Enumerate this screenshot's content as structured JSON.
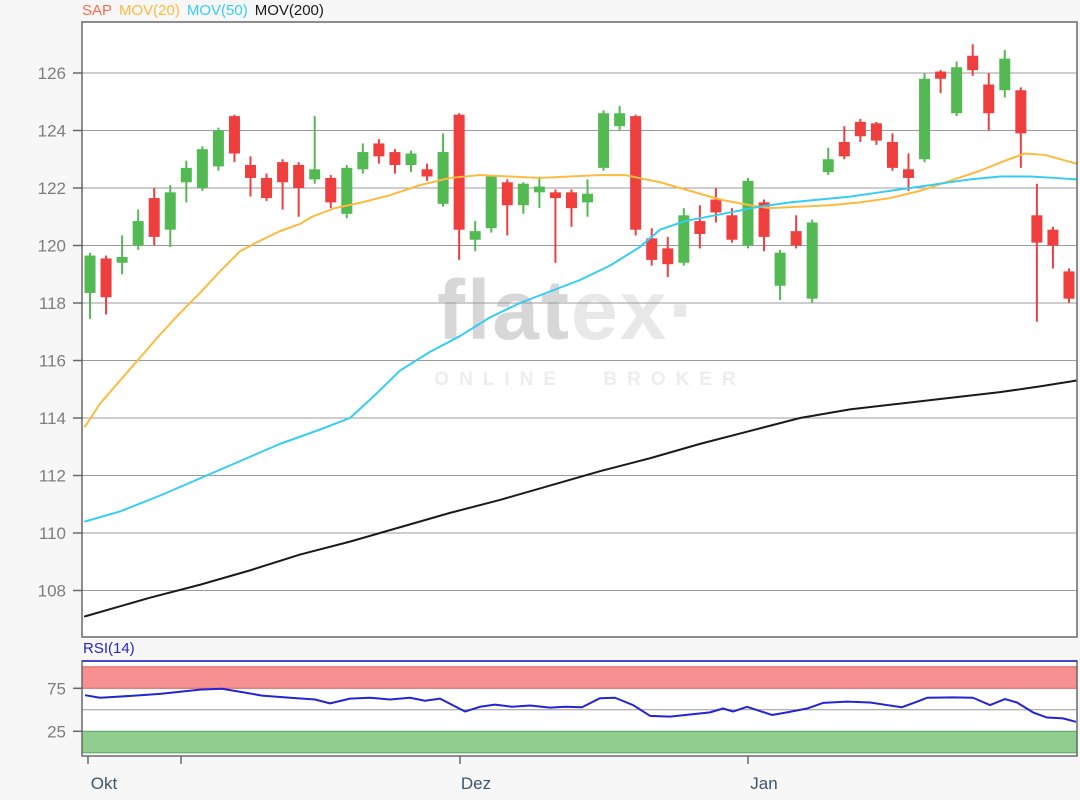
{
  "legend": {
    "items": [
      {
        "label": "SAP",
        "color": "#fa6a52"
      },
      {
        "label": "MOV(20)",
        "color": "#fcba3f"
      },
      {
        "label": "MOV(50)",
        "color": "#36cdf5"
      },
      {
        "label": "MOV(200)",
        "color": "#1a1a1a"
      }
    ]
  },
  "watermark": {
    "part1": "flat",
    "part2": "ex·",
    "subtitle": "ONLINE BROKER",
    "color_dark": "#d7d7d7",
    "color_light": "#e8e8e8",
    "color_subtitle": "#ededed"
  },
  "chart_data": {
    "type": "candlestick",
    "title": "SAP",
    "price_panel": {
      "y_ticks": [
        126,
        124,
        122,
        120,
        118,
        116,
        114,
        112,
        110,
        108
      ],
      "ylim": [
        106.4,
        127.8
      ],
      "grid": true,
      "up_color": "#53b953",
      "down_color": "#ef3e3e",
      "candles_ohlc": [
        [
          118.35,
          119.75,
          117.45,
          119.65
        ],
        [
          119.55,
          119.65,
          117.6,
          118.2
        ],
        [
          119.4,
          120.35,
          119.0,
          119.6
        ],
        [
          120.0,
          121.25,
          119.85,
          120.85
        ],
        [
          121.65,
          122.0,
          120.0,
          120.3
        ],
        [
          120.55,
          122.1,
          119.95,
          121.85
        ],
        [
          122.2,
          122.95,
          121.5,
          122.7
        ],
        [
          122.0,
          123.45,
          121.9,
          123.35
        ],
        [
          122.75,
          124.1,
          122.6,
          124.0
        ],
        [
          124.5,
          124.55,
          122.9,
          123.2
        ],
        [
          122.8,
          123.1,
          121.7,
          122.35
        ],
        [
          122.35,
          122.5,
          121.55,
          121.65
        ],
        [
          122.9,
          123.0,
          121.25,
          122.2
        ],
        [
          122.8,
          122.9,
          121.0,
          122.0
        ],
        [
          122.3,
          124.5,
          122.15,
          122.65
        ],
        [
          122.35,
          122.45,
          121.3,
          121.5
        ],
        [
          121.1,
          122.8,
          120.95,
          122.7
        ],
        [
          122.65,
          123.55,
          122.5,
          123.25
        ],
        [
          123.55,
          123.7,
          122.85,
          123.1
        ],
        [
          123.25,
          123.35,
          122.5,
          122.8
        ],
        [
          122.8,
          123.3,
          122.55,
          123.2
        ],
        [
          122.65,
          122.85,
          122.25,
          122.4
        ],
        [
          121.45,
          123.9,
          121.35,
          123.25
        ],
        [
          124.55,
          124.6,
          119.5,
          120.55
        ],
        [
          120.2,
          120.85,
          119.8,
          120.5
        ],
        [
          120.6,
          122.45,
          120.45,
          122.4
        ],
        [
          122.2,
          122.3,
          120.35,
          121.4
        ],
        [
          121.4,
          122.2,
          121.1,
          122.15
        ],
        [
          121.85,
          122.4,
          121.3,
          122.05
        ],
        [
          121.85,
          121.95,
          119.4,
          121.65
        ],
        [
          121.85,
          121.95,
          120.65,
          121.3
        ],
        [
          121.5,
          122.3,
          121.0,
          121.8
        ],
        [
          122.7,
          124.7,
          122.6,
          124.6
        ],
        [
          124.15,
          124.85,
          124.0,
          124.6
        ],
        [
          124.5,
          124.55,
          120.35,
          120.55
        ],
        [
          120.25,
          120.6,
          119.3,
          119.5
        ],
        [
          119.9,
          120.3,
          118.9,
          119.35
        ],
        [
          119.4,
          121.3,
          119.3,
          121.05
        ],
        [
          120.85,
          121.4,
          119.9,
          120.4
        ],
        [
          121.6,
          122.0,
          120.8,
          121.15
        ],
        [
          121.05,
          121.3,
          120.1,
          120.2
        ],
        [
          120.0,
          122.35,
          119.9,
          122.25
        ],
        [
          121.5,
          121.6,
          119.8,
          120.3
        ],
        [
          118.6,
          119.85,
          118.1,
          119.75
        ],
        [
          120.5,
          121.05,
          119.9,
          120.0
        ],
        [
          118.15,
          120.9,
          118.0,
          120.8
        ],
        [
          122.55,
          123.4,
          122.45,
          123.0
        ],
        [
          123.6,
          124.15,
          123.0,
          123.1
        ],
        [
          124.3,
          124.4,
          123.6,
          123.8
        ],
        [
          124.25,
          124.3,
          123.5,
          123.65
        ],
        [
          123.6,
          123.9,
          122.6,
          122.7
        ],
        [
          122.65,
          123.2,
          121.9,
          122.35
        ],
        [
          123.0,
          126.0,
          122.9,
          125.8
        ],
        [
          126.05,
          126.1,
          125.3,
          125.8
        ],
        [
          124.6,
          126.4,
          124.5,
          126.2
        ],
        [
          126.6,
          127.0,
          125.9,
          126.1
        ],
        [
          125.6,
          126.0,
          124.0,
          124.6
        ],
        [
          125.4,
          126.8,
          125.15,
          126.5
        ],
        [
          125.4,
          125.5,
          122.7,
          123.9
        ],
        [
          121.05,
          122.15,
          117.35,
          120.1
        ],
        [
          120.55,
          120.65,
          119.2,
          120.0
        ],
        [
          119.1,
          119.2,
          118.0,
          118.15
        ]
      ],
      "series": [
        {
          "name": "MOV(20)",
          "color": "#fcba3f",
          "points": [
            [
              85,
              113.7
            ],
            [
              100,
              114.5
            ],
            [
              120,
              115.3
            ],
            [
              140,
              116.1
            ],
            [
              160,
              116.9
            ],
            [
              180,
              117.65
            ],
            [
              200,
              118.35
            ],
            [
              220,
              119.1
            ],
            [
              240,
              119.8
            ],
            [
              262,
              120.2
            ],
            [
              280,
              120.5
            ],
            [
              300,
              120.75
            ],
            [
              312,
              121.0
            ],
            [
              335,
              121.3
            ],
            [
              362,
              121.5
            ],
            [
              390,
              121.75
            ],
            [
              420,
              122.1
            ],
            [
              450,
              122.35
            ],
            [
              480,
              122.45
            ],
            [
              510,
              122.4
            ],
            [
              540,
              122.35
            ],
            [
              570,
              122.4
            ],
            [
              600,
              122.45
            ],
            [
              625,
              122.45
            ],
            [
              660,
              122.2
            ],
            [
              690,
              121.9
            ],
            [
              720,
              121.6
            ],
            [
              750,
              121.4
            ],
            [
              770,
              121.3
            ],
            [
              800,
              121.35
            ],
            [
              830,
              121.4
            ],
            [
              860,
              121.5
            ],
            [
              890,
              121.65
            ],
            [
              920,
              121.9
            ],
            [
              950,
              122.25
            ],
            [
              980,
              122.6
            ],
            [
              1005,
              122.95
            ],
            [
              1025,
              123.2
            ],
            [
              1045,
              123.15
            ],
            [
              1076,
              122.85
            ]
          ]
        },
        {
          "name": "MOV(50)",
          "color": "#36cdf5",
          "points": [
            [
              85,
              110.4
            ],
            [
              120,
              110.75
            ],
            [
              160,
              111.3
            ],
            [
              200,
              111.9
            ],
            [
              240,
              112.5
            ],
            [
              280,
              113.1
            ],
            [
              320,
              113.6
            ],
            [
              350,
              114.0
            ],
            [
              375,
              114.8
            ],
            [
              400,
              115.65
            ],
            [
              430,
              116.3
            ],
            [
              460,
              116.85
            ],
            [
              490,
              117.5
            ],
            [
              520,
              118.0
            ],
            [
              550,
              118.4
            ],
            [
              580,
              118.8
            ],
            [
              610,
              119.3
            ],
            [
              640,
              119.95
            ],
            [
              660,
              120.55
            ],
            [
              685,
              120.85
            ],
            [
              700,
              120.95
            ],
            [
              730,
              121.15
            ],
            [
              760,
              121.35
            ],
            [
              790,
              121.5
            ],
            [
              820,
              121.6
            ],
            [
              850,
              121.7
            ],
            [
              880,
              121.85
            ],
            [
              910,
              122.0
            ],
            [
              940,
              122.15
            ],
            [
              970,
              122.3
            ],
            [
              1000,
              122.4
            ],
            [
              1030,
              122.4
            ],
            [
              1055,
              122.35
            ],
            [
              1076,
              122.3
            ]
          ]
        },
        {
          "name": "MOV(200)",
          "color": "#1a1a1a",
          "points": [
            [
              85,
              107.1
            ],
            [
              150,
              107.75
            ],
            [
              200,
              108.2
            ],
            [
              250,
              108.7
            ],
            [
              300,
              109.25
            ],
            [
              350,
              109.7
            ],
            [
              400,
              110.2
            ],
            [
              450,
              110.7
            ],
            [
              500,
              111.15
            ],
            [
              550,
              111.65
            ],
            [
              600,
              112.15
            ],
            [
              650,
              112.6
            ],
            [
              700,
              113.1
            ],
            [
              750,
              113.55
            ],
            [
              800,
              114.0
            ],
            [
              850,
              114.3
            ],
            [
              900,
              114.5
            ],
            [
              950,
              114.7
            ],
            [
              1000,
              114.9
            ],
            [
              1040,
              115.1
            ],
            [
              1076,
              115.3
            ]
          ]
        }
      ]
    },
    "rsi_panel": {
      "label": "RSI(14)",
      "y_ticks": [
        75,
        25
      ],
      "overbought": 75,
      "oversold": 25,
      "ylim": [
        0,
        100
      ],
      "line_color": "#2424d4",
      "band_red": "#f79090",
      "band_red_edge": "#e25d5d",
      "band_green": "#90ce90",
      "band_green_edge": "#55a35e",
      "points": [
        [
          85,
          67
        ],
        [
          100,
          64
        ],
        [
          115,
          65
        ],
        [
          135,
          66.5
        ],
        [
          160,
          68.5
        ],
        [
          180,
          71
        ],
        [
          200,
          73.5
        ],
        [
          222,
          74.5
        ],
        [
          240,
          71
        ],
        [
          262,
          66.5
        ],
        [
          290,
          64
        ],
        [
          315,
          62
        ],
        [
          330,
          57.5
        ],
        [
          350,
          63
        ],
        [
          370,
          64
        ],
        [
          390,
          62
        ],
        [
          410,
          64
        ],
        [
          425,
          60.5
        ],
        [
          440,
          63
        ],
        [
          465,
          48
        ],
        [
          480,
          53.5
        ],
        [
          495,
          56
        ],
        [
          512,
          53.5
        ],
        [
          530,
          55
        ],
        [
          550,
          52.5
        ],
        [
          565,
          53.5
        ],
        [
          582,
          53
        ],
        [
          600,
          63.5
        ],
        [
          615,
          64
        ],
        [
          633,
          55.5
        ],
        [
          650,
          43
        ],
        [
          670,
          42
        ],
        [
          690,
          44.5
        ],
        [
          710,
          47
        ],
        [
          723,
          51.5
        ],
        [
          733,
          48
        ],
        [
          747,
          53.5
        ],
        [
          760,
          48.5
        ],
        [
          772,
          44
        ],
        [
          787,
          47
        ],
        [
          807,
          51.5
        ],
        [
          823,
          58
        ],
        [
          847,
          59.5
        ],
        [
          870,
          58.5
        ],
        [
          887,
          55.5
        ],
        [
          902,
          53
        ],
        [
          917,
          59.5
        ],
        [
          927,
          64
        ],
        [
          953,
          64.5
        ],
        [
          973,
          64
        ],
        [
          990,
          55.5
        ],
        [
          1005,
          62.5
        ],
        [
          1017,
          58.5
        ],
        [
          1033,
          47
        ],
        [
          1047,
          41
        ],
        [
          1063,
          40
        ],
        [
          1076,
          36
        ]
      ]
    },
    "x_axis": {
      "ticks": [
        {
          "label": "Okt",
          "x": 88
        },
        {
          "label": "",
          "x": 181
        },
        {
          "label": "Dez",
          "x": 460
        },
        {
          "label": "Jan",
          "x": 748
        }
      ],
      "label_color": "#3c566c"
    },
    "axis_text_color": "#7d7d7d",
    "grid_color": "#9b9b9b",
    "border_color": "#686868"
  }
}
